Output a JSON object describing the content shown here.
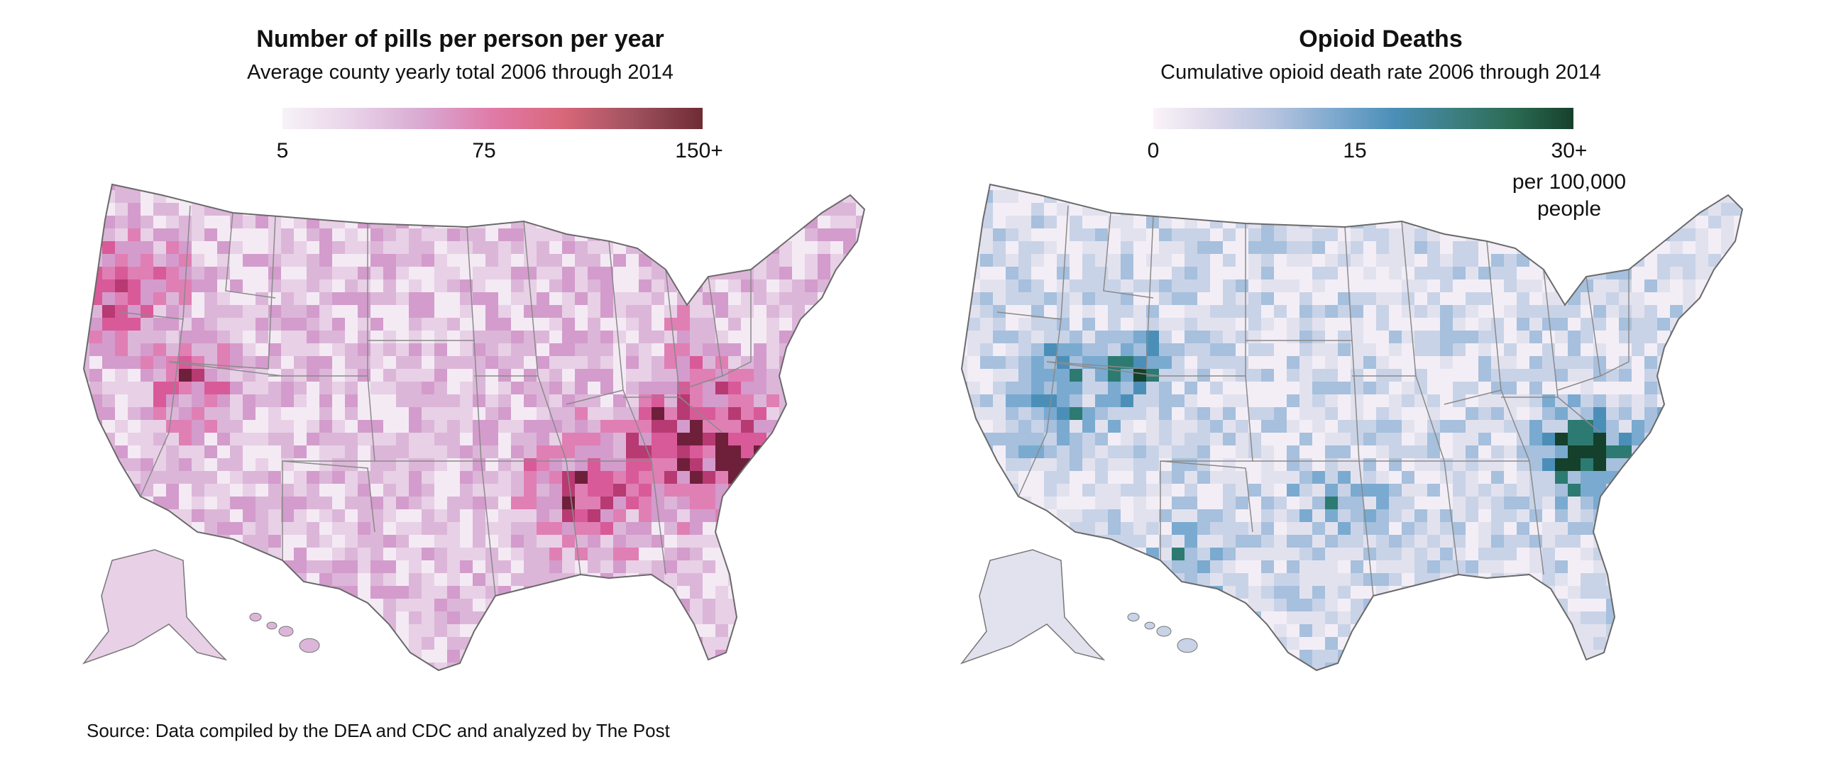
{
  "left_panel": {
    "title": "Number of pills per person per year",
    "subtitle": "Average county yearly total 2006 through 2014",
    "legend": {
      "ticks": [
        "5",
        "75",
        "150+"
      ],
      "colors": [
        "#f7f2f8",
        "#e8d3e8",
        "#d9a9d2",
        "#e07aa8",
        "#d9677a",
        "#a0525e",
        "#6e2c33"
      ]
    },
    "map_palette": [
      "#f4eaf4",
      "#e8d0e6",
      "#dcb6d9",
      "#d39ccc",
      "#e07fb4",
      "#d95a98",
      "#b73a72",
      "#6e1f3a"
    ]
  },
  "right_panel": {
    "title": "Opioid Deaths",
    "subtitle": "Cumulative opioid death rate 2006 through 2014",
    "legend": {
      "ticks": [
        "0",
        "15",
        "30+"
      ],
      "unit_lines": [
        "per 100,000",
        "people"
      ],
      "colors": [
        "#fbf3f8",
        "#dcd8ea",
        "#b6c4df",
        "#7fa9cf",
        "#4b8fb8",
        "#3d7f82",
        "#2b6b53",
        "#17402c"
      ]
    },
    "map_palette": [
      "#f3eef6",
      "#e2e2ef",
      "#c9d3e7",
      "#a6c0dd",
      "#7aaad0",
      "#4b8fb8",
      "#2d7a72",
      "#15402c"
    ]
  },
  "footer": {
    "source": "Source: Data compiled by the DEA and CDC and analyzed by The Post"
  }
}
